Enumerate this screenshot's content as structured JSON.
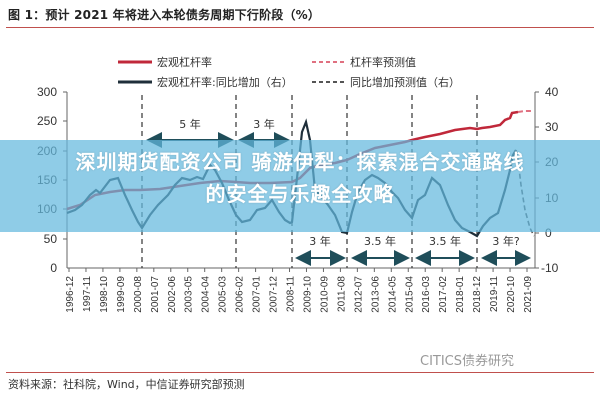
{
  "header": {
    "title": "图 1：预计 2021 年将进入本轮债务周期下行阶段（%）"
  },
  "banner": {
    "line1": "深圳期货配资公司 骑游伊犁：探索混合交通路线",
    "line2": "的安全与乐趣全攻略"
  },
  "footer": {
    "source": "资料来源：社科院，Wind，中信证券研究部预测",
    "watermark": "CITICS债券研究"
  },
  "colors": {
    "leverage": "#c0283a",
    "leverage_forecast": "#e07080",
    "yoy": "#1f2f3a",
    "yoy_forecast": "#555555",
    "arrow": "#1f4e5a",
    "banner": "#64b9de"
  },
  "chart_data": {
    "type": "line",
    "title": "预计 2021 年将进入本轮债务周期下行阶段（%）",
    "legend": [
      {
        "name": "宏观杠杆率",
        "style": "solid",
        "color": "#c0283a",
        "axis": "left"
      },
      {
        "name": "杠杆率预测值",
        "style": "dashed",
        "color": "#e07080",
        "axis": "left"
      },
      {
        "name": "宏观杠杆率:同比增加（右）",
        "style": "solid",
        "color": "#1f2f3a",
        "axis": "right"
      },
      {
        "name": "同比增加预测值（右）",
        "style": "dashed",
        "color": "#555555",
        "axis": "right"
      }
    ],
    "legend_position": "top",
    "left_axis": {
      "ticks": [
        0,
        50,
        100,
        150,
        200,
        250,
        300
      ],
      "ylim": [
        0,
        300
      ]
    },
    "right_axis": {
      "ticks": [
        -10,
        0,
        10,
        20,
        30,
        40
      ],
      "ylim": [
        -10,
        40
      ]
    },
    "x_tick_labels": [
      "1996-12",
      "1997-11",
      "1998-10",
      "1999-09",
      "2000-08",
      "2001-07",
      "2002-06",
      "2003-05",
      "2004-04",
      "2005-03",
      "2006-02",
      "2007-01",
      "2007-12",
      "2008-11",
      "2009-10",
      "2010-09",
      "2011-08",
      "2012-07",
      "2013-06",
      "2014-05",
      "2015-04",
      "2016-03",
      "2017-02",
      "2018-01",
      "2018-12",
      "2019-11",
      "2020-10",
      "2021-09"
    ],
    "grid": false,
    "series": [
      {
        "name": "宏观杠杆率",
        "x": [
          "1996-12",
          "1998-10",
          "2000-08",
          "2002-06",
          "2004-04",
          "2006-02",
          "2007-12",
          "2008-11",
          "2009-10",
          "2011-08",
          "2013-06",
          "2015-04",
          "2017-02",
          "2018-12",
          "2019-11",
          "2020-06"
        ],
        "values": [
          100,
          118,
          130,
          140,
          148,
          145,
          140,
          142,
          165,
          180,
          210,
          240,
          250,
          248,
          255,
          270
        ]
      },
      {
        "name": "杠杆率预测值",
        "x": [
          "2020-06",
          "2020-10",
          "2021-09"
        ],
        "values": [
          270,
          272,
          272
        ]
      },
      {
        "name": "宏观杠杆率:同比增加（右）",
        "x": [
          "1996-12",
          "1997-06",
          "1997-11",
          "1998-06",
          "1999-01",
          "1999-06",
          "2000-08",
          "2001-01",
          "2001-07",
          "2002-06",
          "2003-01",
          "2003-05",
          "2004-01",
          "2004-06",
          "2005-03",
          "2005-10",
          "2006-02",
          "2006-10",
          "2007-06",
          "2007-12",
          "2008-06",
          "2008-11",
          "2009-03",
          "2009-06",
          "2009-10",
          "2010-03",
          "2010-09",
          "2011-03",
          "2011-08",
          "2012-01",
          "2012-07",
          "2013-01",
          "2013-06",
          "2014-01",
          "2014-05",
          "2015-01",
          "2015-04",
          "2015-10",
          "2016-03",
          "2016-10",
          "2017-06",
          "2018-01",
          "2018-06",
          "2018-12",
          "2019-06",
          "2019-11",
          "2020-03",
          "2020-06"
        ],
        "values": [
          6,
          8,
          11,
          12,
          15,
          13,
          3,
          -1,
          -3,
          5,
          9,
          13,
          14,
          13,
          14,
          10,
          5,
          0,
          -3,
          -2,
          2,
          0,
          20,
          34,
          18,
          10,
          5,
          3,
          0,
          8,
          15,
          18,
          17,
          14,
          8,
          3,
          0,
          5,
          7,
          12,
          9,
          5,
          0,
          -2,
          3,
          5,
          15,
          24
        ]
      },
      {
        "name": "同比增加预测值（右）",
        "x": [
          "2020-06",
          "2020-12",
          "2021-03",
          "2021-09"
        ],
        "values": [
          24,
          15,
          5,
          0
        ]
      }
    ],
    "annotations": [
      {
        "text": "5 年",
        "from": "2000-08",
        "to": "2005-10"
      },
      {
        "text": "3 年",
        "from": "2005-10",
        "to": "2008-11"
      },
      {
        "text": "3 年",
        "from": "2008-11",
        "to": "2011-08"
      },
      {
        "text": "3.5 年",
        "from": "2011-08",
        "to": "2015-04"
      },
      {
        "text": "3.5 年",
        "from": "2015-04",
        "to": "2018-12"
      },
      {
        "text": "3 年?",
        "from": "2018-12",
        "to": "2021-09"
      }
    ]
  }
}
